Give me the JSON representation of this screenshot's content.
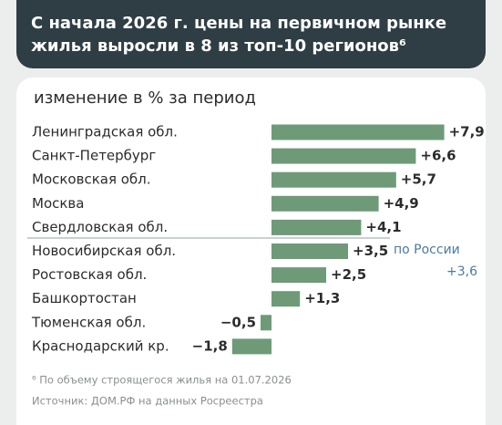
{
  "chart_data": {
    "type": "barh",
    "title": "С начала 2026 г. цены на первичном рынке жилья выросли в 8 из топ-10 регионов⁶",
    "subtitle": "изменение в % за период",
    "categories": [
      "Ленинградская обл.",
      "Санкт-Петербург",
      "Московская обл.",
      "Москва",
      "Свердловская обл.",
      "Новосибирская обл.",
      "Ростовская обл.",
      "Башкортостан",
      "Тюменская обл.",
      "Краснодарский кр."
    ],
    "values": [
      7.9,
      6.6,
      5.7,
      4.9,
      4.1,
      3.5,
      2.5,
      1.3,
      -0.5,
      -1.8
    ],
    "value_labels": [
      "+7,9",
      "+6,6",
      "+5,7",
      "+4,9",
      "+4,1",
      "+3,5",
      "+2,5",
      "+1,3",
      "−0,5",
      "−1,8"
    ],
    "color": "#6e9a78",
    "xlim": [
      -2,
      8
    ],
    "reference": {
      "label": "по России",
      "value": 3.6,
      "value_label": "+3,6"
    },
    "footnotes": [
      "⁶ По объему строящегося жилья на 01.07.2026",
      "Источник: ДОМ.РФ на данных Росреестра"
    ]
  }
}
